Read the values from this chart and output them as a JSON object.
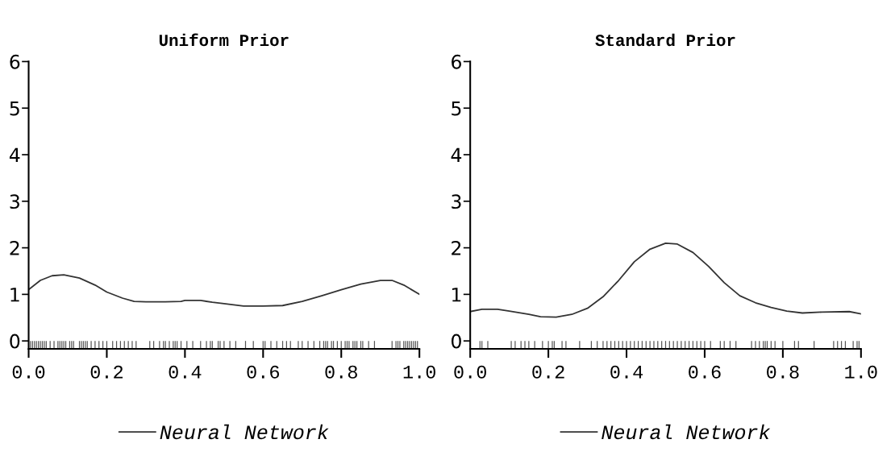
{
  "chart_data": [
    {
      "type": "line",
      "title": "Uniform Prior",
      "xlim": [
        0,
        1
      ],
      "ylim": [
        -0.17,
        6
      ],
      "xticks": [
        {
          "value": 0,
          "label": "0.0"
        },
        {
          "value": 0.2,
          "label": "0.2"
        },
        {
          "value": 0.4,
          "label": "0.4"
        },
        {
          "value": 0.6,
          "label": "0.6"
        },
        {
          "value": 0.8,
          "label": "0.8"
        },
        {
          "value": 1,
          "label": "1.0"
        }
      ],
      "yticks": [
        0,
        1,
        2,
        3,
        4,
        5,
        6
      ],
      "legend": "bottom",
      "grid": false,
      "series": [
        {
          "name": "Neural Network",
          "color": "#333333",
          "x": [
            0,
            0.03,
            0.06,
            0.09,
            0.13,
            0.17,
            0.2,
            0.24,
            0.27,
            0.3,
            0.35,
            0.39,
            0.4,
            0.44,
            0.47,
            0.5,
            0.55,
            0.6,
            0.65,
            0.7,
            0.75,
            0.8,
            0.85,
            0.9,
            0.93,
            0.96,
            1.0
          ],
          "values": [
            1.1,
            1.3,
            1.4,
            1.42,
            1.35,
            1.2,
            1.05,
            0.92,
            0.85,
            0.84,
            0.84,
            0.85,
            0.87,
            0.87,
            0.83,
            0.8,
            0.75,
            0.75,
            0.76,
            0.85,
            0.97,
            1.1,
            1.22,
            1.3,
            1.3,
            1.2,
            1.0
          ]
        },
        {
          "color": "#555555",
          "type": "bar",
          "base": [
            -0.17,
            -0.17,
            -0.17,
            -0.17,
            -0.17,
            -0.17,
            -0.17,
            -0.17,
            -0.17,
            -0.17,
            -0.17,
            -0.17,
            -0.17,
            -0.17,
            -0.17,
            -0.17,
            -0.17,
            -0.17,
            -0.17,
            -0.17,
            -0.17,
            -0.17,
            -0.17,
            -0.17,
            -0.17,
            -0.17,
            -0.17,
            -0.17,
            -0.17,
            -0.17,
            -0.17,
            -0.17,
            -0.17,
            -0.17,
            -0.17,
            -0.17,
            -0.17,
            -0.17,
            -0.17,
            -0.17,
            -0.17,
            -0.17,
            -0.17,
            -0.17,
            -0.17,
            -0.17,
            -0.17,
            -0.17,
            -0.17,
            -0.17,
            -0.17,
            -0.17,
            -0.17,
            -0.17,
            -0.17,
            -0.17,
            -0.17,
            -0.17,
            -0.17,
            -0.17,
            -0.17,
            -0.17,
            -0.17,
            -0.17,
            -0.17,
            -0.17,
            -0.17,
            -0.17,
            -0.17,
            -0.17,
            -0.17,
            -0.17,
            -0.17,
            -0.17,
            -0.17,
            -0.17,
            -0.17,
            -0.17,
            -0.17,
            -0.17,
            -0.17,
            -0.17,
            -0.17,
            -0.17,
            -0.17,
            -0.17,
            -0.17,
            -0.17,
            -0.17,
            -0.17,
            -0.17,
            -0.17,
            -0.17,
            -0.17,
            -0.17,
            -0.17,
            -0.17,
            -0.17,
            -0.17,
            -0.17
          ],
          "x": [
            0.005,
            0.01,
            0.015,
            0.02,
            0.025,
            0.03,
            0.035,
            0.04,
            0.045,
            0.055,
            0.065,
            0.075,
            0.08,
            0.085,
            0.09,
            0.095,
            0.105,
            0.11,
            0.115,
            0.13,
            0.135,
            0.14,
            0.145,
            0.15,
            0.16,
            0.17,
            0.18,
            0.19,
            0.2,
            0.215,
            0.225,
            0.235,
            0.245,
            0.255,
            0.265,
            0.275,
            0.31,
            0.32,
            0.335,
            0.345,
            0.35,
            0.36,
            0.37,
            0.375,
            0.38,
            0.39,
            0.405,
            0.42,
            0.44,
            0.455,
            0.465,
            0.47,
            0.485,
            0.49,
            0.5,
            0.515,
            0.53,
            0.555,
            0.575,
            0.6,
            0.605,
            0.62,
            0.635,
            0.65,
            0.66,
            0.67,
            0.69,
            0.7,
            0.715,
            0.73,
            0.745,
            0.755,
            0.76,
            0.765,
            0.775,
            0.78,
            0.79,
            0.8,
            0.81,
            0.815,
            0.82,
            0.83,
            0.835,
            0.84,
            0.85,
            0.855,
            0.87,
            0.885,
            0.93,
            0.94,
            0.945,
            0.95,
            0.96,
            0.965,
            0.97,
            0.975,
            0.98,
            0.985,
            0.99,
            0.995
          ],
          "values": [
            0.17,
            0.17,
            0.17,
            0.17,
            0.17,
            0.17,
            0.17,
            0.17,
            0.17,
            0.17,
            0.17,
            0.17,
            0.17,
            0.17,
            0.17,
            0.17,
            0.17,
            0.17,
            0.17,
            0.17,
            0.17,
            0.17,
            0.17,
            0.17,
            0.17,
            0.17,
            0.17,
            0.17,
            0.17,
            0.17,
            0.17,
            0.17,
            0.17,
            0.17,
            0.17,
            0.17,
            0.17,
            0.17,
            0.17,
            0.17,
            0.17,
            0.17,
            0.17,
            0.17,
            0.17,
            0.17,
            0.17,
            0.17,
            0.17,
            0.17,
            0.17,
            0.17,
            0.17,
            0.17,
            0.17,
            0.17,
            0.17,
            0.17,
            0.17,
            0.17,
            0.17,
            0.17,
            0.17,
            0.17,
            0.17,
            0.17,
            0.17,
            0.17,
            0.17,
            0.17,
            0.17,
            0.17,
            0.17,
            0.17,
            0.17,
            0.17,
            0.17,
            0.17,
            0.17,
            0.17,
            0.17,
            0.17,
            0.17,
            0.17,
            0.17,
            0.17,
            0.17,
            0.17,
            0.17,
            0.17,
            0.17,
            0.17,
            0.17,
            0.17,
            0.17,
            0.17,
            0.17,
            0.17,
            0.17,
            0.17
          ]
        }
      ]
    },
    {
      "type": "line",
      "title": "Standard Prior",
      "xlim": [
        0,
        1
      ],
      "ylim": [
        -0.17,
        6
      ],
      "xticks": [
        {
          "value": 0,
          "label": "0.0"
        },
        {
          "value": 0.2,
          "label": "0.2"
        },
        {
          "value": 0.4,
          "label": "0.4"
        },
        {
          "value": 0.6,
          "label": "0.6"
        },
        {
          "value": 0.8,
          "label": "0.8"
        },
        {
          "value": 1,
          "label": "1.0"
        }
      ],
      "yticks": [
        0,
        1,
        2,
        3,
        4,
        5,
        6
      ],
      "legend": "bottom",
      "grid": false,
      "series": [
        {
          "name": "Neural Network",
          "color": "#333333",
          "x": [
            0,
            0.03,
            0.07,
            0.1,
            0.15,
            0.18,
            0.22,
            0.26,
            0.3,
            0.34,
            0.38,
            0.42,
            0.46,
            0.5,
            0.53,
            0.57,
            0.61,
            0.65,
            0.69,
            0.73,
            0.77,
            0.81,
            0.85,
            0.9,
            0.97,
            1.0
          ],
          "values": [
            0.63,
            0.68,
            0.68,
            0.64,
            0.57,
            0.52,
            0.51,
            0.57,
            0.7,
            0.95,
            1.3,
            1.7,
            1.97,
            2.1,
            2.08,
            1.9,
            1.6,
            1.25,
            0.97,
            0.82,
            0.72,
            0.64,
            0.6,
            0.62,
            0.63,
            0.58
          ]
        },
        {
          "color": "#555555",
          "type": "bar",
          "base": [
            -0.17,
            -0.17,
            -0.17,
            -0.17,
            -0.17,
            -0.17,
            -0.17,
            -0.17,
            -0.17,
            -0.17,
            -0.17,
            -0.17,
            -0.17,
            -0.17,
            -0.17,
            -0.17,
            -0.17,
            -0.17,
            -0.17,
            -0.17,
            -0.17,
            -0.17,
            -0.17,
            -0.17,
            -0.17,
            -0.17,
            -0.17,
            -0.17,
            -0.17,
            -0.17,
            -0.17,
            -0.17,
            -0.17,
            -0.17,
            -0.17,
            -0.17,
            -0.17,
            -0.17,
            -0.17,
            -0.17,
            -0.17,
            -0.17,
            -0.17,
            -0.17,
            -0.17,
            -0.17,
            -0.17,
            -0.17,
            -0.17,
            -0.17,
            -0.17,
            -0.17,
            -0.17,
            -0.17,
            -0.17,
            -0.17,
            -0.17,
            -0.17,
            -0.17,
            -0.17,
            -0.17,
            -0.17,
            -0.17,
            -0.17,
            -0.17,
            -0.17,
            -0.17,
            -0.17,
            -0.17
          ],
          "x": [
            0.025,
            0.03,
            0.045,
            0.105,
            0.115,
            0.13,
            0.14,
            0.15,
            0.165,
            0.185,
            0.2,
            0.21,
            0.215,
            0.235,
            0.245,
            0.28,
            0.31,
            0.325,
            0.34,
            0.35,
            0.36,
            0.37,
            0.38,
            0.39,
            0.4,
            0.41,
            0.42,
            0.43,
            0.44,
            0.45,
            0.46,
            0.47,
            0.48,
            0.49,
            0.5,
            0.51,
            0.52,
            0.53,
            0.54,
            0.55,
            0.56,
            0.57,
            0.58,
            0.59,
            0.6,
            0.615,
            0.64,
            0.65,
            0.665,
            0.68,
            0.72,
            0.73,
            0.74,
            0.75,
            0.755,
            0.76,
            0.77,
            0.78,
            0.8,
            0.83,
            0.84,
            0.88,
            0.93,
            0.94,
            0.95,
            0.96,
            0.98,
            0.99,
            0.995
          ],
          "values": [
            0.17,
            0.17,
            0.17,
            0.17,
            0.17,
            0.17,
            0.17,
            0.17,
            0.17,
            0.17,
            0.17,
            0.17,
            0.17,
            0.17,
            0.17,
            0.17,
            0.17,
            0.17,
            0.17,
            0.17,
            0.17,
            0.17,
            0.17,
            0.17,
            0.17,
            0.17,
            0.17,
            0.17,
            0.17,
            0.17,
            0.17,
            0.17,
            0.17,
            0.17,
            0.17,
            0.17,
            0.17,
            0.17,
            0.17,
            0.17,
            0.17,
            0.17,
            0.17,
            0.17,
            0.17,
            0.17,
            0.17,
            0.17,
            0.17,
            0.17,
            0.17,
            0.17,
            0.17,
            0.17,
            0.17,
            0.17,
            0.17,
            0.17,
            0.17,
            0.17,
            0.17,
            0.17,
            0.17,
            0.17,
            0.17,
            0.17,
            0.17,
            0.17,
            0.17
          ]
        }
      ]
    }
  ]
}
